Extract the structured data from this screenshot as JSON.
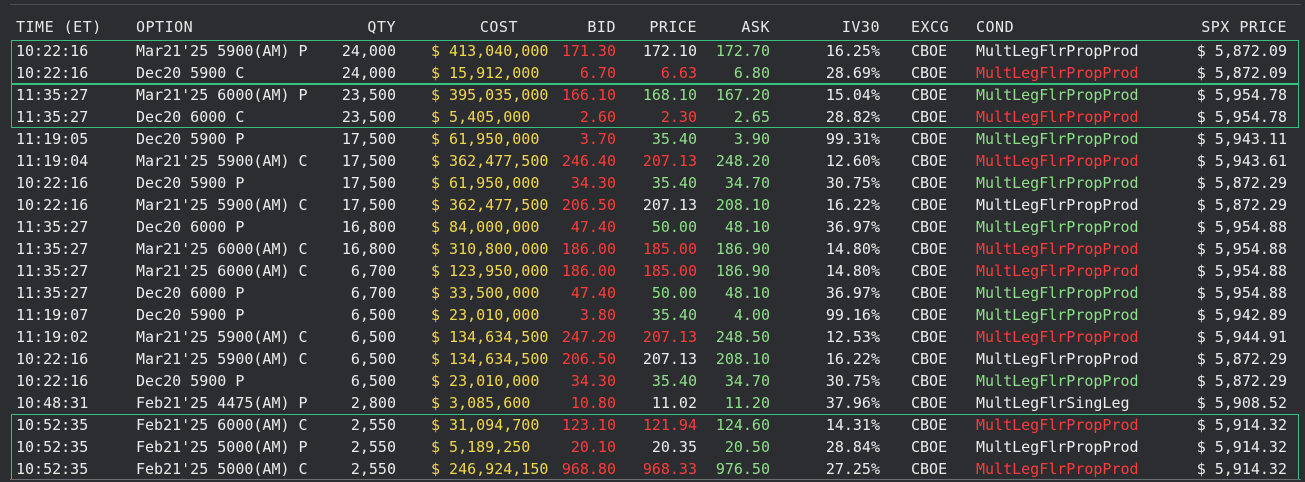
{
  "colors": {
    "background": "#2b2d30",
    "text": "#e8e8e8",
    "cost": "#f2d84b",
    "up": "#8fe08a",
    "down": "#ff3b3b",
    "highlight_box": "#35c27e"
  },
  "columns": {
    "time": "TIME (ET)",
    "option": "OPTION",
    "qty": "QTY",
    "cost": "COST",
    "bid": "BID",
    "price": "PRICE",
    "ask": "ASK",
    "iv30": "IV30",
    "excg": "EXCG",
    "cond": "COND",
    "spx": "SPX PRICE"
  },
  "highlight_groups": [
    {
      "first_row": 0,
      "last_row": 1
    },
    {
      "first_row": 2,
      "last_row": 3
    },
    {
      "first_row": 17,
      "last_row": 19
    }
  ],
  "rows": [
    {
      "time": "10:22:16",
      "option": "Mar21'25 5900(AM) P",
      "qty": "24,000",
      "cost": "$ 413,040,000",
      "bid": "171.30",
      "price": "172.10",
      "price_color": "white",
      "ask": "172.70",
      "iv30": "16.25%",
      "excg": "CBOE",
      "cond": "MultLegFlrPropProd",
      "cond_color": "white",
      "spx": "$ 5,872.09"
    },
    {
      "time": "10:22:16",
      "option": "Dec20 5900 C",
      "qty": "24,000",
      "cost": "$ 15,912,000",
      "bid": "6.70",
      "price": "6.63",
      "price_color": "red",
      "ask": "6.80",
      "iv30": "28.69%",
      "excg": "CBOE",
      "cond": "MultLegFlrPropProd",
      "cond_color": "red",
      "spx": "$ 5,872.09"
    },
    {
      "time": "11:35:27",
      "option": "Mar21'25 6000(AM) P",
      "qty": "23,500",
      "cost": "$ 395,035,000",
      "bid": "166.10",
      "price": "168.10",
      "price_color": "green",
      "ask": "167.20",
      "iv30": "15.04%",
      "excg": "CBOE",
      "cond": "MultLegFlrPropProd",
      "cond_color": "green",
      "spx": "$ 5,954.78"
    },
    {
      "time": "11:35:27",
      "option": "Dec20 6000 C",
      "qty": "23,500",
      "cost": "$ 5,405,000",
      "bid": "2.60",
      "price": "2.30",
      "price_color": "red",
      "ask": "2.65",
      "iv30": "28.82%",
      "excg": "CBOE",
      "cond": "MultLegFlrPropProd",
      "cond_color": "red",
      "spx": "$ 5,954.78"
    },
    {
      "time": "11:19:05",
      "option": "Dec20 5900 P",
      "qty": "17,500",
      "cost": "$ 61,950,000",
      "bid": "3.70",
      "price": "35.40",
      "price_color": "green",
      "ask": "3.90",
      "iv30": "99.31%",
      "excg": "CBOE",
      "cond": "MultLegFlrPropProd",
      "cond_color": "green",
      "spx": "$ 5,943.11"
    },
    {
      "time": "11:19:04",
      "option": "Mar21'25 5900(AM) C",
      "qty": "17,500",
      "cost": "$ 362,477,500",
      "bid": "246.40",
      "price": "207.13",
      "price_color": "red",
      "ask": "248.20",
      "iv30": "12.60%",
      "excg": "CBOE",
      "cond": "MultLegFlrPropProd",
      "cond_color": "red",
      "spx": "$ 5,943.61"
    },
    {
      "time": "10:22:16",
      "option": "Dec20 5900 P",
      "qty": "17,500",
      "cost": "$ 61,950,000",
      "bid": "34.30",
      "price": "35.40",
      "price_color": "green",
      "ask": "34.70",
      "iv30": "30.75%",
      "excg": "CBOE",
      "cond": "MultLegFlrPropProd",
      "cond_color": "green",
      "spx": "$ 5,872.29"
    },
    {
      "time": "10:22:16",
      "option": "Mar21'25 5900(AM) C",
      "qty": "17,500",
      "cost": "$ 362,477,500",
      "bid": "206.50",
      "price": "207.13",
      "price_color": "white",
      "ask": "208.10",
      "iv30": "16.22%",
      "excg": "CBOE",
      "cond": "MultLegFlrPropProd",
      "cond_color": "white",
      "spx": "$ 5,872.29"
    },
    {
      "time": "11:35:27",
      "option": "Dec20 6000 P",
      "qty": "16,800",
      "cost": "$ 84,000,000",
      "bid": "47.40",
      "price": "50.00",
      "price_color": "green",
      "ask": "48.10",
      "iv30": "36.97%",
      "excg": "CBOE",
      "cond": "MultLegFlrPropProd",
      "cond_color": "green",
      "spx": "$ 5,954.88"
    },
    {
      "time": "11:35:27",
      "option": "Mar21'25 6000(AM) C",
      "qty": "16,800",
      "cost": "$ 310,800,000",
      "bid": "186.00",
      "price": "185.00",
      "price_color": "red",
      "ask": "186.90",
      "iv30": "14.80%",
      "excg": "CBOE",
      "cond": "MultLegFlrPropProd",
      "cond_color": "red",
      "spx": "$ 5,954.88"
    },
    {
      "time": "11:35:27",
      "option": "Mar21'25 6000(AM) C",
      "qty": "6,700",
      "cost": "$ 123,950,000",
      "bid": "186.00",
      "price": "185.00",
      "price_color": "red",
      "ask": "186.90",
      "iv30": "14.80%",
      "excg": "CBOE",
      "cond": "MultLegFlrPropProd",
      "cond_color": "red",
      "spx": "$ 5,954.88"
    },
    {
      "time": "11:35:27",
      "option": "Dec20 6000 P",
      "qty": "6,700",
      "cost": "$ 33,500,000",
      "bid": "47.40",
      "price": "50.00",
      "price_color": "green",
      "ask": "48.10",
      "iv30": "36.97%",
      "excg": "CBOE",
      "cond": "MultLegFlrPropProd",
      "cond_color": "green",
      "spx": "$ 5,954.88"
    },
    {
      "time": "11:19:07",
      "option": "Dec20 5900 P",
      "qty": "6,500",
      "cost": "$ 23,010,000",
      "bid": "3.80",
      "price": "35.40",
      "price_color": "green",
      "ask": "4.00",
      "iv30": "99.16%",
      "excg": "CBOE",
      "cond": "MultLegFlrPropProd",
      "cond_color": "green",
      "spx": "$ 5,942.89"
    },
    {
      "time": "11:19:02",
      "option": "Mar21'25 5900(AM) C",
      "qty": "6,500",
      "cost": "$ 134,634,500",
      "bid": "247.20",
      "price": "207.13",
      "price_color": "red",
      "ask": "248.50",
      "iv30": "12.53%",
      "excg": "CBOE",
      "cond": "MultLegFlrPropProd",
      "cond_color": "red",
      "spx": "$ 5,944.91"
    },
    {
      "time": "10:22:16",
      "option": "Mar21'25 5900(AM) C",
      "qty": "6,500",
      "cost": "$ 134,634,500",
      "bid": "206.50",
      "price": "207.13",
      "price_color": "white",
      "ask": "208.10",
      "iv30": "16.22%",
      "excg": "CBOE",
      "cond": "MultLegFlrPropProd",
      "cond_color": "white",
      "spx": "$ 5,872.29"
    },
    {
      "time": "10:22:16",
      "option": "Dec20 5900 P",
      "qty": "6,500",
      "cost": "$ 23,010,000",
      "bid": "34.30",
      "price": "35.40",
      "price_color": "green",
      "ask": "34.70",
      "iv30": "30.75%",
      "excg": "CBOE",
      "cond": "MultLegFlrPropProd",
      "cond_color": "green",
      "spx": "$ 5,872.29"
    },
    {
      "time": "10:48:31",
      "option": "Feb21'25 4475(AM) P",
      "qty": "2,800",
      "cost": "$ 3,085,600",
      "bid": "10.80",
      "price": "11.02",
      "price_color": "white",
      "ask": "11.20",
      "iv30": "37.96%",
      "excg": "CBOE",
      "cond": "MultLegFlrSingLeg",
      "cond_color": "white",
      "spx": "$ 5,908.52"
    },
    {
      "time": "10:52:35",
      "option": "Feb21'25 6000(AM) C",
      "qty": "2,550",
      "cost": "$ 31,094,700",
      "bid": "123.10",
      "price": "121.94",
      "price_color": "red",
      "ask": "124.60",
      "iv30": "14.31%",
      "excg": "CBOE",
      "cond": "MultLegFlrPropProd",
      "cond_color": "red",
      "spx": "$ 5,914.32"
    },
    {
      "time": "10:52:35",
      "option": "Feb21'25 5000(AM) P",
      "qty": "2,550",
      "cost": "$ 5,189,250",
      "bid": "20.10",
      "price": "20.35",
      "price_color": "white",
      "ask": "20.50",
      "iv30": "28.84%",
      "excg": "CBOE",
      "cond": "MultLegFlrPropProd",
      "cond_color": "white",
      "spx": "$ 5,914.32"
    },
    {
      "time": "10:52:35",
      "option": "Feb21'25 5000(AM) C",
      "qty": "2,550",
      "cost": "$ 246,924,150",
      "bid": "968.80",
      "price": "968.33",
      "price_color": "red",
      "ask": "976.50",
      "iv30": "27.25%",
      "excg": "CBOE",
      "cond": "MultLegFlrPropProd",
      "cond_color": "red",
      "spx": "$ 5,914.32"
    }
  ]
}
